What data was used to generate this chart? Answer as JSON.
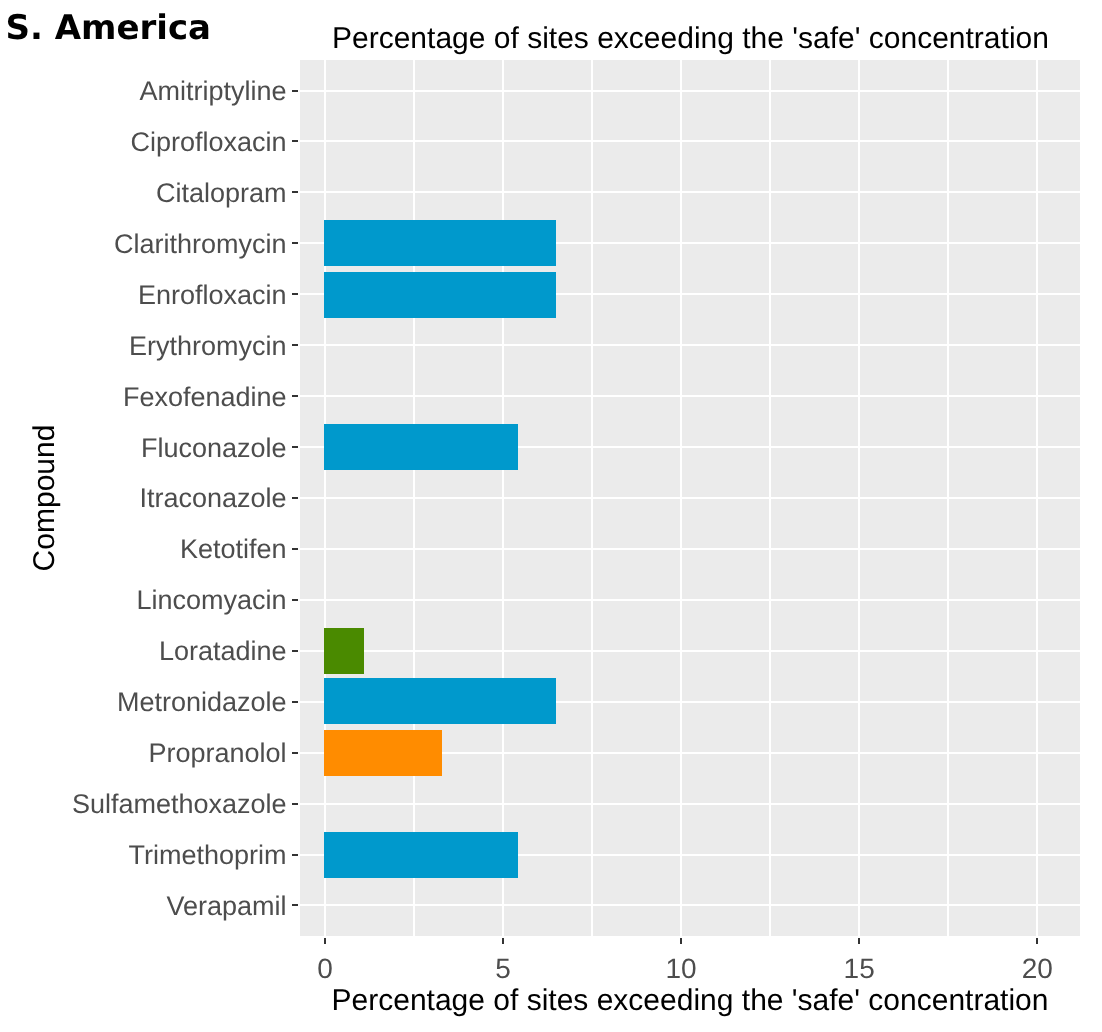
{
  "chart_data": {
    "type": "bar",
    "orientation": "horizontal",
    "title": "S. America",
    "xlabel": "Percentage of sites exceeding the 'safe' concentration",
    "ylabel": "Compound",
    "annotations": [
      "Percentage of sites exceeding the 'safe' concentration"
    ],
    "categories": [
      "Amitriptyline",
      "Ciprofloxacin",
      "Citalopram",
      "Clarithromycin",
      "Enrofloxacin",
      "Erythromycin",
      "Fexofenadine",
      "Fluconazole",
      "Itraconazole",
      "Ketotifen",
      "Lincomyacin",
      "Loratadine",
      "Metronidazole",
      "Propranolol",
      "Sulfamethoxazole",
      "Trimethoprim",
      "Verapamil"
    ],
    "values": [
      0,
      0,
      0,
      6.5,
      6.5,
      0,
      0,
      5.4,
      0,
      0,
      0,
      1.1,
      6.5,
      3.3,
      0,
      5.4,
      0
    ],
    "colors": [
      "#0099cc",
      "#0099cc",
      "#0099cc",
      "#0099cc",
      "#0099cc",
      "#0099cc",
      "#0099cc",
      "#0099cc",
      "#0099cc",
      "#0099cc",
      "#0099cc",
      "#4a8a00",
      "#0099cc",
      "#ff8c00",
      "#0099cc",
      "#0099cc",
      "#0099cc"
    ],
    "xlim": [
      -0.7,
      21.2
    ],
    "xticks": [
      0,
      5,
      10,
      15,
      20
    ],
    "grid": true
  }
}
